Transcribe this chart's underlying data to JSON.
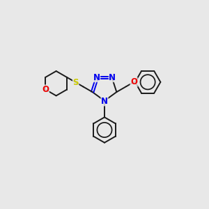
{
  "background_color": "#e8e8e8",
  "bond_color": "#1a1a1a",
  "N_color": "#0000ee",
  "O_color": "#ee0000",
  "S_color": "#cccc00",
  "figsize": [
    3.0,
    3.0
  ],
  "dpi": 100,
  "bond_lw": 1.4,
  "font_size": 8.5,
  "xlim": [
    0,
    10
  ],
  "ylim": [
    0,
    10
  ]
}
